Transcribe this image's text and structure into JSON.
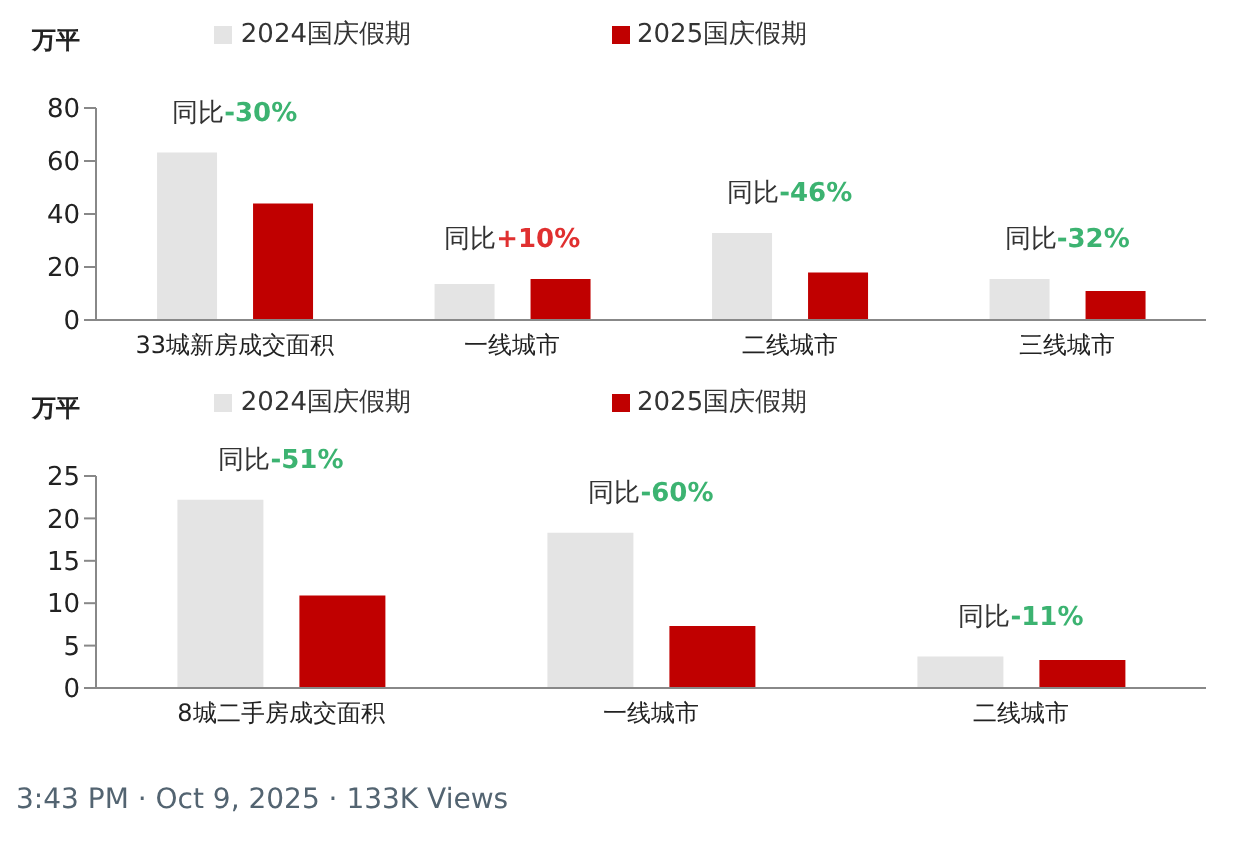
{
  "chart_data": [
    {
      "type": "bar",
      "ylabel": "万平",
      "categories": [
        "33城新房成交面积",
        "一线城市",
        "二线城市",
        "三线城市"
      ],
      "series": [
        {
          "name": "2024国庆假期",
          "color": "#e4e4e4",
          "values": [
            63.2,
            13.6,
            32.8,
            15.5
          ]
        },
        {
          "name": "2025国庆假期",
          "color": "#c00000",
          "values": [
            44,
            15.5,
            17.9,
            10.9
          ]
        }
      ],
      "ylim": [
        0,
        80
      ],
      "yticks": [
        0,
        20,
        40,
        60,
        80
      ],
      "grid": false,
      "legend": "top",
      "annotations": [
        "同比-30%",
        "同比+10%",
        "同比-46%",
        "同比-32%"
      ]
    },
    {
      "type": "bar",
      "ylabel": "万平",
      "categories": [
        "8城二手房成交面积",
        "一线城市",
        "二线城市"
      ],
      "series": [
        {
          "name": "2024国庆假期",
          "color": "#e4e4e4",
          "values": [
            22.2,
            18.3,
            3.7
          ]
        },
        {
          "name": "2025国庆假期",
          "color": "#c00000",
          "values": [
            10.9,
            7.3,
            3.3
          ]
        }
      ],
      "ylim": [
        0,
        25
      ],
      "yticks": [
        0,
        5,
        10,
        15,
        20,
        25
      ],
      "grid": false,
      "legend": "top",
      "annotations": [
        "同比-51%",
        "同比-60%",
        "同比-11%",
        "3:43 PM · Oct 9, 2025 · 133K Views"
      ]
    }
  ]
}
